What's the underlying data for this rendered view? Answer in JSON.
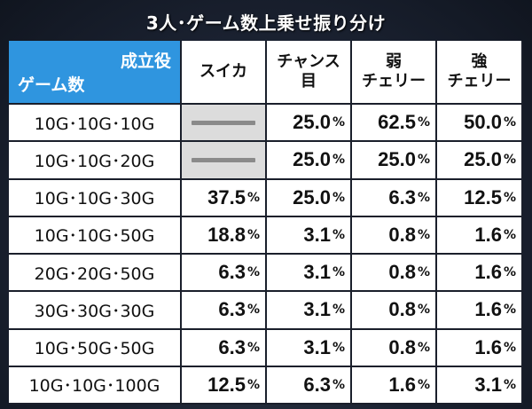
{
  "title": "3人･ゲーム数上乗せ振り分け",
  "corner": {
    "top": "成立役",
    "bottom": "ゲーム数"
  },
  "columns": [
    {
      "line1": "スイカ",
      "line2": ""
    },
    {
      "line1": "チャンス",
      "line2": "目"
    },
    {
      "line1": "弱",
      "line2": "チェリー"
    },
    {
      "line1": "強",
      "line2": "チェリー"
    }
  ],
  "percent_sign": "%",
  "rows": [
    {
      "label": "10G･10G･10G",
      "cells": [
        null,
        "25.0",
        "62.5",
        "50.0"
      ]
    },
    {
      "label": "10G･10G･20G",
      "cells": [
        null,
        "25.0",
        "25.0",
        "25.0"
      ]
    },
    {
      "label": "10G･10G･30G",
      "cells": [
        "37.5",
        "25.0",
        "6.3",
        "12.5"
      ]
    },
    {
      "label": "10G･10G･50G",
      "cells": [
        "18.8",
        "3.1",
        "0.8",
        "1.6"
      ]
    },
    {
      "label": "20G･20G･50G",
      "cells": [
        "6.3",
        "3.1",
        "0.8",
        "1.6"
      ]
    },
    {
      "label": "30G･30G･30G",
      "cells": [
        "6.3",
        "3.1",
        "0.8",
        "1.6"
      ]
    },
    {
      "label": "10G･50G･50G",
      "cells": [
        "6.3",
        "3.1",
        "0.8",
        "1.6"
      ]
    },
    {
      "label": "10G･10G･100G",
      "cells": [
        "12.5",
        "6.3",
        "1.6",
        "3.1"
      ]
    }
  ]
}
